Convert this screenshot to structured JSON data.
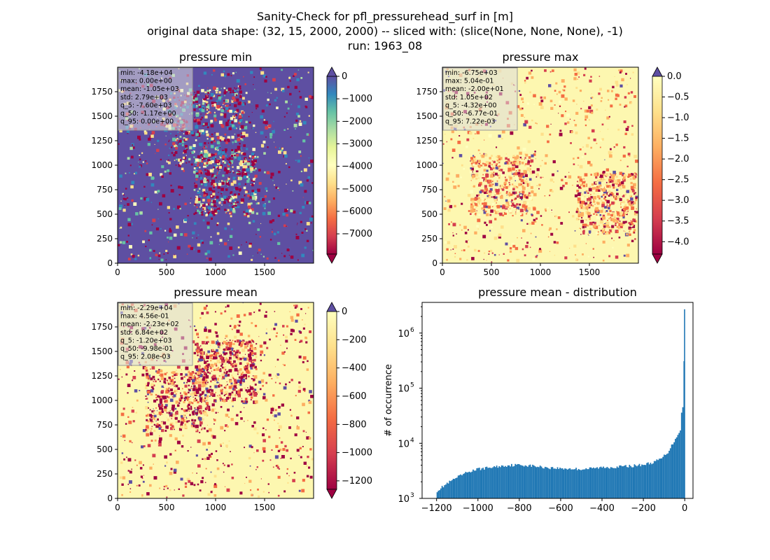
{
  "figure": {
    "suptitle": [
      "Sanity-Check for pfl_pressurehead_surf in [m]",
      "original data shape: (32, 15, 2000, 2000) -- sliced with: (slice(None, None, None), -1)",
      "run: 1963_08"
    ]
  },
  "chart_data": [
    {
      "type": "heatmap",
      "title": "pressure min",
      "xlim": [
        0,
        2000
      ],
      "ylim": [
        0,
        2000
      ],
      "xticks": [
        0,
        500,
        1000,
        1500
      ],
      "yticks": [
        0,
        250,
        500,
        750,
        1000,
        1250,
        1500,
        1750
      ],
      "colormap": "Spectral",
      "colorbar": {
        "range": [
          -7900,
          0
        ],
        "ticks": [
          0,
          -1000,
          -2000,
          -3000,
          -4000,
          -5000,
          -6000,
          -7000
        ],
        "labels": [
          "0",
          "−1000",
          "−2000",
          "−3000",
          "−4000",
          "−5000",
          "−6000",
          "−7000"
        ],
        "extend": "both"
      },
      "background_color": "#5e4fa2",
      "stats": [
        "min: -4.18e+04",
        "max: 0.00e+00",
        "mean: -1.05e+03",
        "std: 2.79e+03",
        "q_5: -7.60e+03",
        "q_50: -1.17e+00",
        "q_95: 0.00e+00"
      ]
    },
    {
      "type": "heatmap",
      "title": "pressure max",
      "xlim": [
        0,
        2000
      ],
      "ylim": [
        0,
        2000
      ],
      "xticks": [
        0,
        500,
        1000,
        1500
      ],
      "yticks": [
        0,
        250,
        500,
        750,
        1000,
        1250,
        1500,
        1750
      ],
      "colormap": "Spectral",
      "colorbar": {
        "range": [
          -4.3,
          0
        ],
        "ticks": [
          0,
          -0.5,
          -1.0,
          -1.5,
          -2.0,
          -2.5,
          -3.0,
          -3.5,
          -4.0
        ],
        "labels": [
          "0.0",
          "−0.5",
          "−1.0",
          "−1.5",
          "−2.0",
          "−2.5",
          "−3.0",
          "−3.5",
          "−4.0"
        ],
        "extend": "both"
      },
      "background_color": "#fdf7b0",
      "stats": [
        "min: -6.75e+03",
        "max: 5.04e-01",
        "mean: -2.00e+01",
        "std: 1.05e+02",
        "q_5: -4.32e+00",
        "q_50: -6.77e-01",
        "q_95: 7.22e-03"
      ]
    },
    {
      "type": "heatmap",
      "title": "pressure mean",
      "xlim": [
        0,
        2000
      ],
      "ylim": [
        0,
        2000
      ],
      "xticks": [
        0,
        500,
        1000,
        1500
      ],
      "yticks": [
        0,
        250,
        500,
        750,
        1000,
        1250,
        1500,
        1750
      ],
      "colormap": "Spectral",
      "colorbar": {
        "range": [
          -1260,
          0
        ],
        "ticks": [
          0,
          -200,
          -400,
          -600,
          -800,
          -1000,
          -1200
        ],
        "labels": [
          "0",
          "−200",
          "−400",
          "−600",
          "−800",
          "−1000",
          "−1200"
        ],
        "extend": "both"
      },
      "background_color": "#fdf7b0",
      "stats": [
        "min: -2.29e+04",
        "max: 4.56e-01",
        "mean: -2.23e+02",
        "std: 6.84e+02",
        "q_5: -1.20e+03",
        "q_50: -9.98e-01",
        "q_95: 2.08e-03"
      ]
    },
    {
      "type": "bar",
      "title": "pressure mean - distribution",
      "ylabel": "# of occurrence",
      "yscale": "log",
      "xlim": [
        -1270,
        40
      ],
      "ylim": [
        1000,
        3600000
      ],
      "xticks": [
        -1200,
        -1000,
        -800,
        -600,
        -400,
        -200,
        0
      ],
      "xticklabels": [
        "−1200",
        "−1000",
        "−800",
        "−600",
        "−400",
        "−200",
        "0"
      ],
      "yticks": [
        1000,
        10000,
        100000,
        1000000
      ],
      "bar_color": "#1f77b4",
      "bin_width": 6,
      "bins_from": -1200,
      "anchors": [
        [
          -1200,
          1350
        ],
        [
          -1150,
          1850
        ],
        [
          -1100,
          2400
        ],
        [
          -1050,
          3000
        ],
        [
          -1000,
          3400
        ],
        [
          -950,
          3600
        ],
        [
          -900,
          3800
        ],
        [
          -850,
          4000
        ],
        [
          -800,
          4050
        ],
        [
          -750,
          3950
        ],
        [
          -700,
          3750
        ],
        [
          -650,
          3600
        ],
        [
          -600,
          3500
        ],
        [
          -550,
          3450
        ],
        [
          -500,
          3400
        ],
        [
          -450,
          3500
        ],
        [
          -400,
          3650
        ],
        [
          -350,
          3700
        ],
        [
          -300,
          3800
        ],
        [
          -250,
          3900
        ],
        [
          -200,
          4100
        ],
        [
          -150,
          4500
        ],
        [
          -110,
          5400
        ],
        [
          -80,
          7000
        ],
        [
          -60,
          9500
        ],
        [
          -40,
          13000
        ],
        [
          -20,
          18000
        ],
        [
          -12,
          25000
        ],
        [
          -6,
          33000
        ],
        [
          0,
          2700000
        ]
      ]
    }
  ]
}
